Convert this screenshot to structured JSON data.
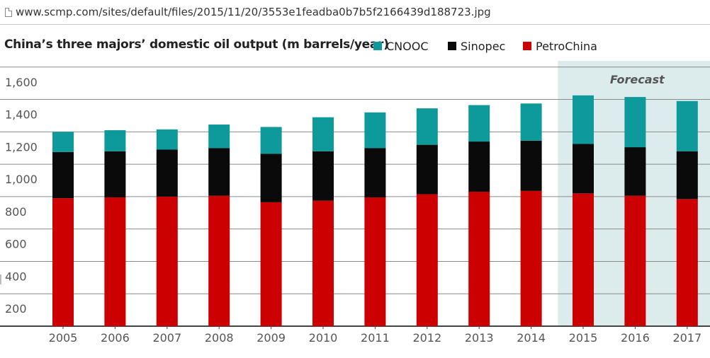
{
  "browser": {
    "url": "www.scmp.com/sites/default/files/2015/11/20/3553e1feadba0b7b5f2166439d188723.jpg"
  },
  "chart_data": {
    "type": "bar",
    "stacked": true,
    "title": "China’s three majors’ domestic oil output (m barrels/year)",
    "categories": [
      "2005",
      "2006",
      "2007",
      "2008",
      "2009",
      "2010",
      "2011",
      "2012",
      "2013",
      "2014",
      "2015",
      "2016",
      "2017"
    ],
    "series": [
      {
        "name": "PetroChina",
        "color": "#cc0000",
        "values": [
          790,
          795,
          800,
          805,
          765,
          775,
          795,
          815,
          830,
          835,
          820,
          805,
          785
        ]
      },
      {
        "name": "Sinopec",
        "color": "#0a0a0a",
        "values": [
          285,
          285,
          290,
          295,
          300,
          305,
          305,
          305,
          310,
          310,
          305,
          300,
          295
        ]
      },
      {
        "name": "CNOOC",
        "color": "#0e9a9a",
        "values": [
          125,
          130,
          125,
          145,
          165,
          210,
          220,
          225,
          225,
          230,
          300,
          310,
          310
        ]
      }
    ],
    "legend_order": [
      "CNOOC",
      "Sinopec",
      "PetroChina"
    ],
    "legend_position": "top",
    "yticks": [
      "200",
      "400",
      "600",
      "800",
      "1,000",
      "1,200",
      "1,400",
      "1,600"
    ],
    "ylim": [
      0,
      1600
    ],
    "grid": true,
    "forecast": {
      "label": "Forecast",
      "from": "2015",
      "to": "2017",
      "color": "#dcecec"
    }
  }
}
